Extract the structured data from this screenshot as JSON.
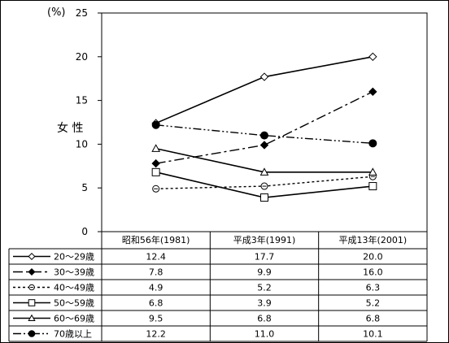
{
  "chart_data": {
    "type": "line",
    "ylabel": "女 性",
    "unit_label": "(%)",
    "ylim": [
      0,
      25
    ],
    "yticks": [
      0,
      5,
      10,
      15,
      20,
      25
    ],
    "grid": false,
    "categories": [
      "昭和56年(1981)",
      "平成3年(1991)",
      "平成13年(2001)"
    ],
    "series": [
      {
        "name": "20～29歳",
        "values": [
          12.4,
          17.7,
          20.0
        ],
        "value_labels": [
          "12.4",
          "17.7",
          "20.0"
        ],
        "marker": "diamond-open",
        "dash": "solid"
      },
      {
        "name": "30～39歳",
        "values": [
          7.8,
          9.9,
          16.0
        ],
        "value_labels": [
          "7.8",
          "9.9",
          "16.0"
        ],
        "marker": "diamond-filled",
        "dash": "dashdot"
      },
      {
        "name": "40～49歳",
        "values": [
          4.9,
          5.2,
          6.3
        ],
        "value_labels": [
          "4.9",
          "5.2",
          "6.3"
        ],
        "marker": "circle-dash",
        "dash": "dotted"
      },
      {
        "name": "50～59歳",
        "values": [
          6.8,
          3.9,
          5.2
        ],
        "value_labels": [
          "6.8",
          "3.9",
          "5.2"
        ],
        "marker": "square-open",
        "dash": "solid"
      },
      {
        "name": "60～69歳",
        "values": [
          9.5,
          6.8,
          6.8
        ],
        "value_labels": [
          "9.5",
          "6.8",
          "6.8"
        ],
        "marker": "triangle-open",
        "dash": "solid"
      },
      {
        "name": "70歳以上",
        "values": [
          12.2,
          11.0,
          10.1
        ],
        "value_labels": [
          "12.2",
          "11.0",
          "10.1"
        ],
        "marker": "circle-filled",
        "dash": "dashdotdot"
      }
    ]
  }
}
